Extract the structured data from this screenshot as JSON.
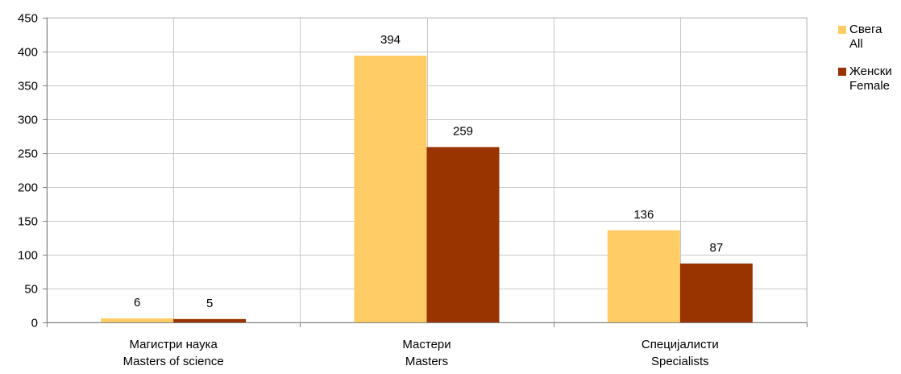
{
  "chart_data": {
    "type": "bar",
    "categories": [
      {
        "line1": "Магистри наука",
        "line2": "Masters of science"
      },
      {
        "line1": "Мастери",
        "line2": "Masters"
      },
      {
        "line1": "Специјалисти",
        "line2": "Specialists"
      }
    ],
    "series": [
      {
        "name_line1": "Свега",
        "name_line2": "All",
        "color": "#FFCC66",
        "values": [
          6,
          394,
          136
        ]
      },
      {
        "name_line1": "Женски",
        "name_line2": "Female",
        "color": "#993300",
        "values": [
          5,
          259,
          87
        ]
      }
    ],
    "y_ticks": [
      0,
      50,
      100,
      150,
      200,
      250,
      300,
      350,
      400,
      450
    ],
    "ylim": [
      0,
      450
    ],
    "grid": true,
    "legend_position": "right",
    "colors": {
      "grid": "#C8C8C8",
      "axis": "#808080"
    }
  }
}
